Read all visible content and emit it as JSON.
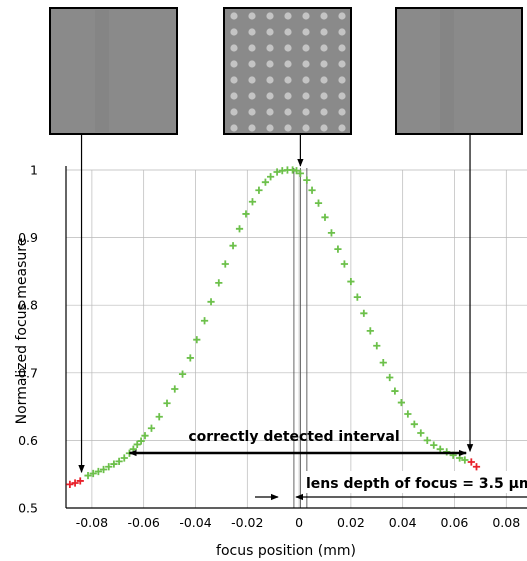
{
  "chart_data": {
    "type": "scatter",
    "xlabel": "focus position (mm)",
    "ylabel": "Normalized focus measure",
    "xlim": [
      -0.09,
      0.088
    ],
    "ylim": [
      0.5,
      1.0
    ],
    "x_ticks": [
      -0.08,
      -0.06,
      -0.04,
      -0.02,
      0,
      0.02,
      0.04,
      0.06,
      0.08
    ],
    "x_tick_labels": [
      "-0.08",
      "-0.06",
      "-0.04",
      "-0.02",
      "0",
      "0.02",
      "0.04",
      "0.06",
      "0.08"
    ],
    "y_ticks": [
      0.5,
      0.6,
      0.7,
      0.8,
      0.9,
      1.0
    ],
    "y_tick_labels": [
      "0.5",
      "0.6",
      "0.7",
      "0.8",
      "0.9",
      "1"
    ],
    "grid": true,
    "series": [
      {
        "marker": "plus",
        "color": "#6cc04a",
        "x": [
          -0.0815,
          -0.0795,
          -0.0775,
          -0.0755,
          -0.0735,
          -0.0715,
          -0.0695,
          -0.0675,
          -0.0655,
          -0.064,
          -0.0625,
          -0.061,
          -0.0595,
          -0.057,
          -0.054,
          -0.051,
          -0.048,
          -0.045,
          -0.042,
          -0.0395,
          -0.0365,
          -0.034,
          -0.031,
          -0.0285,
          -0.0255,
          -0.023,
          -0.0205,
          -0.018,
          -0.0155,
          -0.013,
          -0.011,
          -0.0085,
          -0.0065,
          -0.0045,
          -0.0025,
          -0.001,
          0.0005,
          0.003,
          0.005,
          0.0075,
          0.01,
          0.0125,
          0.015,
          0.0175,
          0.02,
          0.0225,
          0.025,
          0.0275,
          0.03,
          0.0325,
          0.035,
          0.037,
          0.0395,
          0.042,
          0.0445,
          0.047,
          0.0495,
          0.052,
          0.0545,
          0.057,
          0.0595,
          0.062,
          0.064
        ],
        "y": [
          0.548,
          0.551,
          0.554,
          0.557,
          0.561,
          0.565,
          0.569,
          0.574,
          0.581,
          0.587,
          0.594,
          0.599,
          0.607,
          0.618,
          0.635,
          0.655,
          0.676,
          0.698,
          0.722,
          0.749,
          0.777,
          0.805,
          0.833,
          0.861,
          0.888,
          0.913,
          0.935,
          0.953,
          0.97,
          0.982,
          0.99,
          0.997,
          0.999,
          1.0,
          1.0,
          0.999,
          0.995,
          0.985,
          0.97,
          0.951,
          0.93,
          0.907,
          0.883,
          0.861,
          0.835,
          0.812,
          0.788,
          0.762,
          0.74,
          0.715,
          0.693,
          0.673,
          0.656,
          0.639,
          0.624,
          0.611,
          0.6,
          0.593,
          0.587,
          0.583,
          0.578,
          0.574,
          0.571
        ]
      },
      {
        "marker": "plus",
        "color": "#e8202a",
        "x": [
          -0.0885,
          -0.0865,
          -0.0845,
          0.0665,
          0.0685
        ],
        "y": [
          0.535,
          0.537,
          0.54,
          0.568,
          0.561
        ]
      }
    ],
    "annotations": {
      "interval_label": "correctly detected interval",
      "interval_from": -0.0655,
      "interval_to": 0.0645,
      "depth_label": "lens depth of focus = 3.5 µm",
      "focus_lines": [
        -0.002,
        0.0005,
        0.003
      ]
    },
    "thumbnails": [
      {
        "name": "blurred-left",
        "pointer_x": -0.084,
        "pointer_y": 0.547
      },
      {
        "name": "in-focus",
        "pointer_x": 0.0005,
        "pointer_y": 1.0
      },
      {
        "name": "blurred-right",
        "pointer_x": 0.066,
        "pointer_y": 0.578
      }
    ],
    "colors": {
      "green_marker": "#6cc04a",
      "red_marker": "#e8202a",
      "grid": "#b8b8b8",
      "thumb_gray": "#8a8a8a",
      "thumb_spot": "#c4c4c4"
    }
  }
}
